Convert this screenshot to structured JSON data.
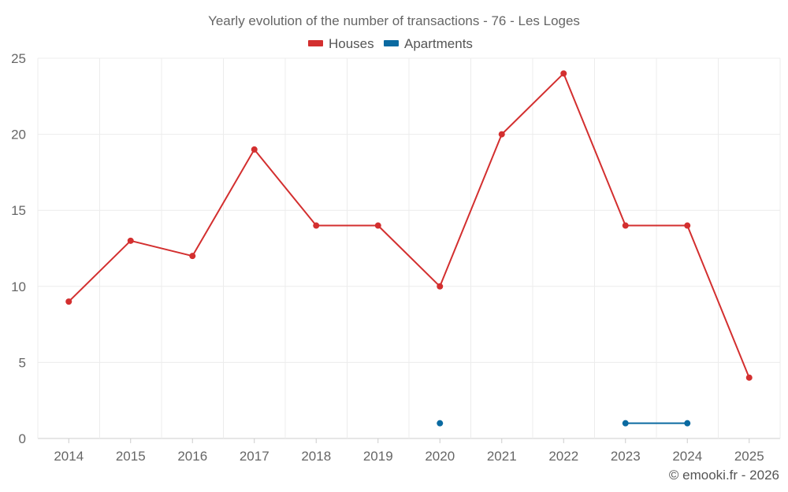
{
  "chart_data": {
    "type": "line",
    "title": "Yearly evolution of the number of transactions - 76 - Les Loges",
    "categories": [
      "2014",
      "2015",
      "2016",
      "2017",
      "2018",
      "2019",
      "2020",
      "2021",
      "2022",
      "2023",
      "2024",
      "2025"
    ],
    "series": [
      {
        "name": "Houses",
        "color": "#d32f2f",
        "values": [
          9,
          13,
          12,
          19,
          14,
          14,
          10,
          20,
          24,
          14,
          14,
          4
        ]
      },
      {
        "name": "Apartments",
        "color": "#0a6aa1",
        "values": [
          null,
          null,
          null,
          null,
          null,
          null,
          1,
          null,
          null,
          1,
          1,
          null
        ]
      }
    ],
    "ylim": [
      0,
      25
    ],
    "yticks": [
      0,
      5,
      10,
      15,
      20,
      25
    ],
    "grid": true,
    "legend_position": "top-center",
    "xlabel": "",
    "ylabel": ""
  },
  "credit": "© emooki.fr - 2026"
}
